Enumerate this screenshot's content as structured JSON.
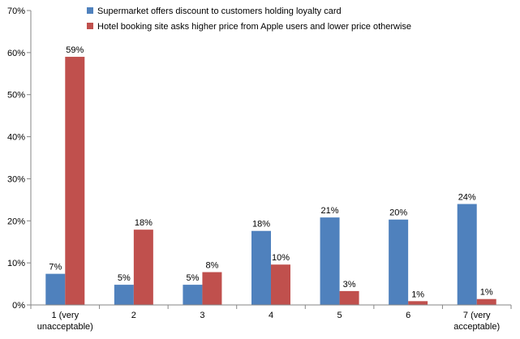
{
  "chart_data": {
    "type": "bar",
    "categories": [
      [
        "1 (very",
        "unacceptable)"
      ],
      [
        "2"
      ],
      [
        "3"
      ],
      [
        "4"
      ],
      [
        "5"
      ],
      [
        "6"
      ],
      [
        "7 (very",
        "acceptable)"
      ]
    ],
    "series": [
      {
        "name": "Supermarket offers discount to customers holding loyalty card",
        "color": "#4F81BD",
        "values": [
          7.4,
          4.8,
          4.8,
          17.6,
          20.8,
          20.3,
          24.0
        ],
        "labels": [
          "7%",
          "5%",
          "5%",
          "18%",
          "21%",
          "20%",
          "24%"
        ]
      },
      {
        "name": "Hotel booking site asks higher price from Apple users and lower price otherwise",
        "color": "#C0504D",
        "values": [
          59.0,
          17.9,
          7.8,
          9.6,
          3.3,
          0.9,
          1.4
        ],
        "labels": [
          "59%",
          "18%",
          "8%",
          "10%",
          "3%",
          "1%",
          "1%"
        ]
      }
    ],
    "ylim": [
      0,
      70
    ],
    "yticks": [
      "0%",
      "10%",
      "20%",
      "30%",
      "40%",
      "50%",
      "60%",
      "70%"
    ],
    "grid": false,
    "legend_position": "top"
  }
}
